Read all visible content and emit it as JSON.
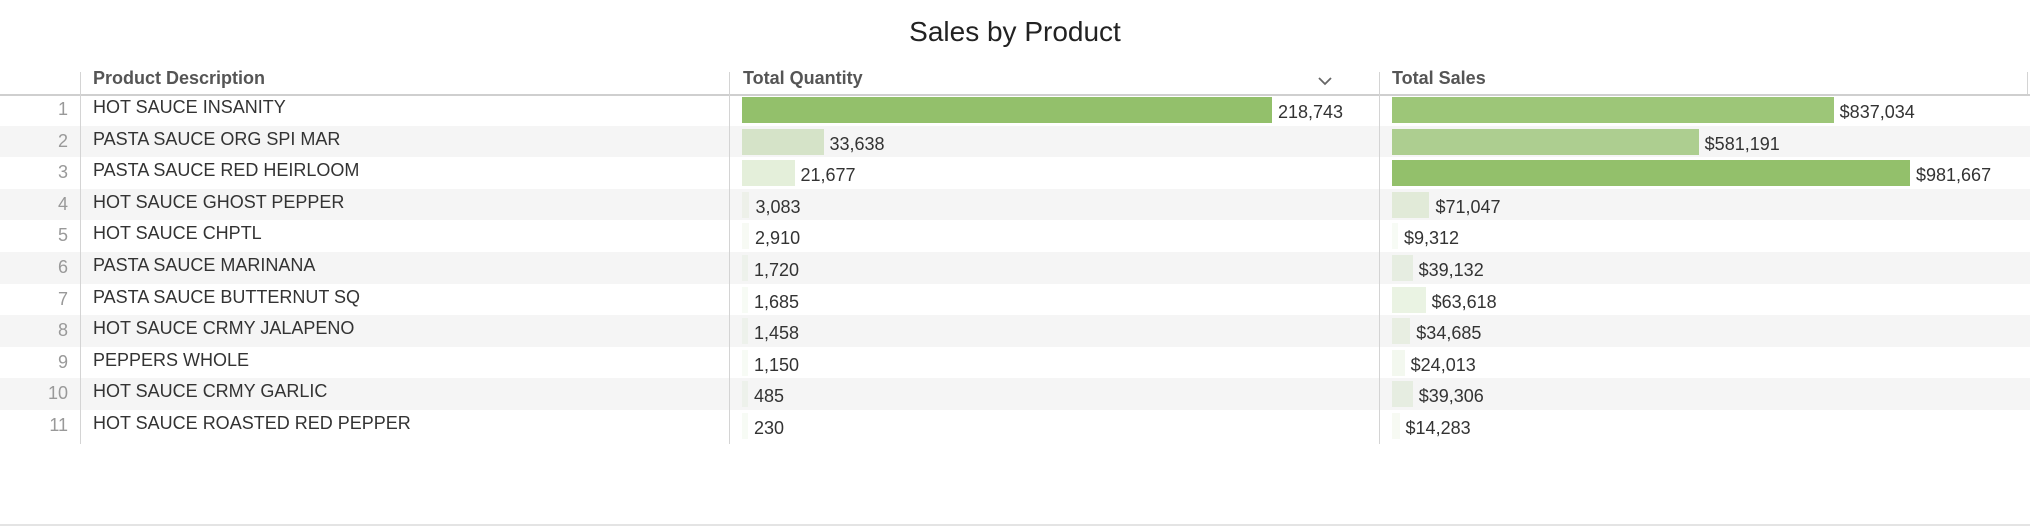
{
  "title": "Sales by Product",
  "colors": {
    "bar_green": "#93c06b",
    "row_alt": "#f5f5f5",
    "header_text": "#555555"
  },
  "chart_data": {
    "type": "table",
    "title": "Sales by Product",
    "columns": [
      "Product Description",
      "Total Quantity",
      "Total Sales"
    ],
    "sort": {
      "column": "Total Quantity",
      "direction": "descending"
    },
    "rows": [
      {
        "n": "1",
        "desc": "HOT SAUCE INSANITY",
        "qty": 218743,
        "qty_label": "218,743",
        "sales": 837034,
        "sales_label": "$837,034"
      },
      {
        "n": "2",
        "desc": "PASTA SAUCE ORG SPI MAR",
        "qty": 33638,
        "qty_label": "33,638",
        "sales": 581191,
        "sales_label": "$581,191"
      },
      {
        "n": "3",
        "desc": "PASTA SAUCE RED HEIRLOOM",
        "qty": 21677,
        "qty_label": "21,677",
        "sales": 981667,
        "sales_label": "$981,667"
      },
      {
        "n": "4",
        "desc": "HOT SAUCE GHOST PEPPER",
        "qty": 3083,
        "qty_label": "3,083",
        "sales": 71047,
        "sales_label": "$71,047"
      },
      {
        "n": "5",
        "desc": "HOT SAUCE CHPTL",
        "qty": 2910,
        "qty_label": "2,910",
        "sales": 9312,
        "sales_label": "$9,312"
      },
      {
        "n": "6",
        "desc": "PASTA SAUCE MARINANA",
        "qty": 1720,
        "qty_label": "1,720",
        "sales": 39132,
        "sales_label": "$39,132"
      },
      {
        "n": "7",
        "desc": "PASTA SAUCE BUTTERNUT SQ",
        "qty": 1685,
        "qty_label": "1,685",
        "sales": 63618,
        "sales_label": "$63,618"
      },
      {
        "n": "8",
        "desc": "HOT SAUCE CRMY JALAPENO",
        "qty": 1458,
        "qty_label": "1,458",
        "sales": 34685,
        "sales_label": "$34,685"
      },
      {
        "n": "9",
        "desc": "PEPPERS WHOLE",
        "qty": 1150,
        "qty_label": "1,150",
        "sales": 24013,
        "sales_label": "$24,013"
      },
      {
        "n": "10",
        "desc": "HOT SAUCE CRMY GARLIC",
        "qty": 485,
        "qty_label": "485",
        "sales": 39306,
        "sales_label": "$39,306"
      },
      {
        "n": "11",
        "desc": "HOT SAUCE ROASTED RED PEPPER",
        "qty": 230,
        "qty_label": "230",
        "sales": 14283,
        "sales_label": "$14,283"
      }
    ]
  }
}
